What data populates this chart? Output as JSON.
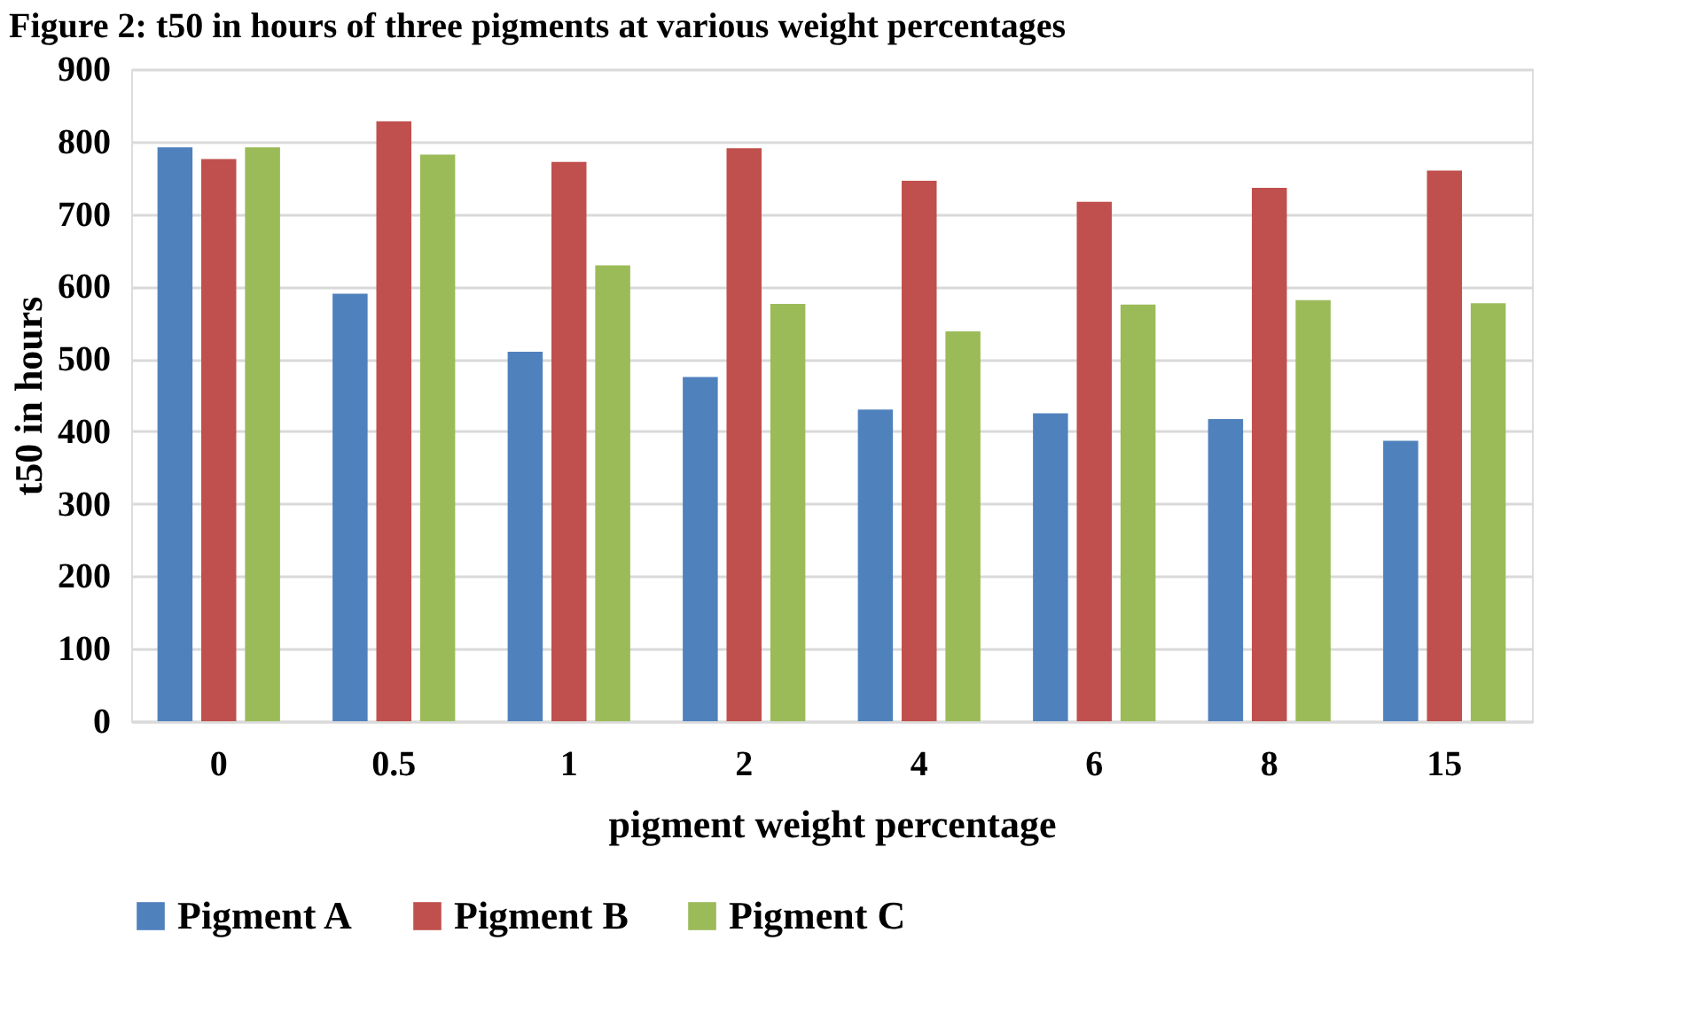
{
  "chart_data": {
    "type": "bar",
    "title": "Figure 2: t50 in hours of three pigments at various weight percentages",
    "xlabel": "pigment weight percentage",
    "ylabel": "t50 in hours",
    "categories": [
      "0",
      "0.5",
      "1",
      "2",
      "4",
      "6",
      "8",
      "15"
    ],
    "series": [
      {
        "name": "Pigment A",
        "color": "#4f81bd",
        "values": [
          792,
          590,
          510,
          475,
          430,
          425,
          417,
          387
        ]
      },
      {
        "name": "Pigment B",
        "color": "#c0504d",
        "values": [
          776,
          828,
          772,
          791,
          746,
          717,
          736,
          760
        ]
      },
      {
        "name": "Pigment C",
        "color": "#9bbb59",
        "values": [
          792,
          782,
          629,
          576,
          538,
          575,
          581,
          577
        ]
      }
    ],
    "ylim": [
      0,
      900
    ],
    "yticks": [
      0,
      100,
      200,
      300,
      400,
      500,
      600,
      700,
      800,
      900
    ],
    "grid": "y",
    "legend": "bottom"
  }
}
